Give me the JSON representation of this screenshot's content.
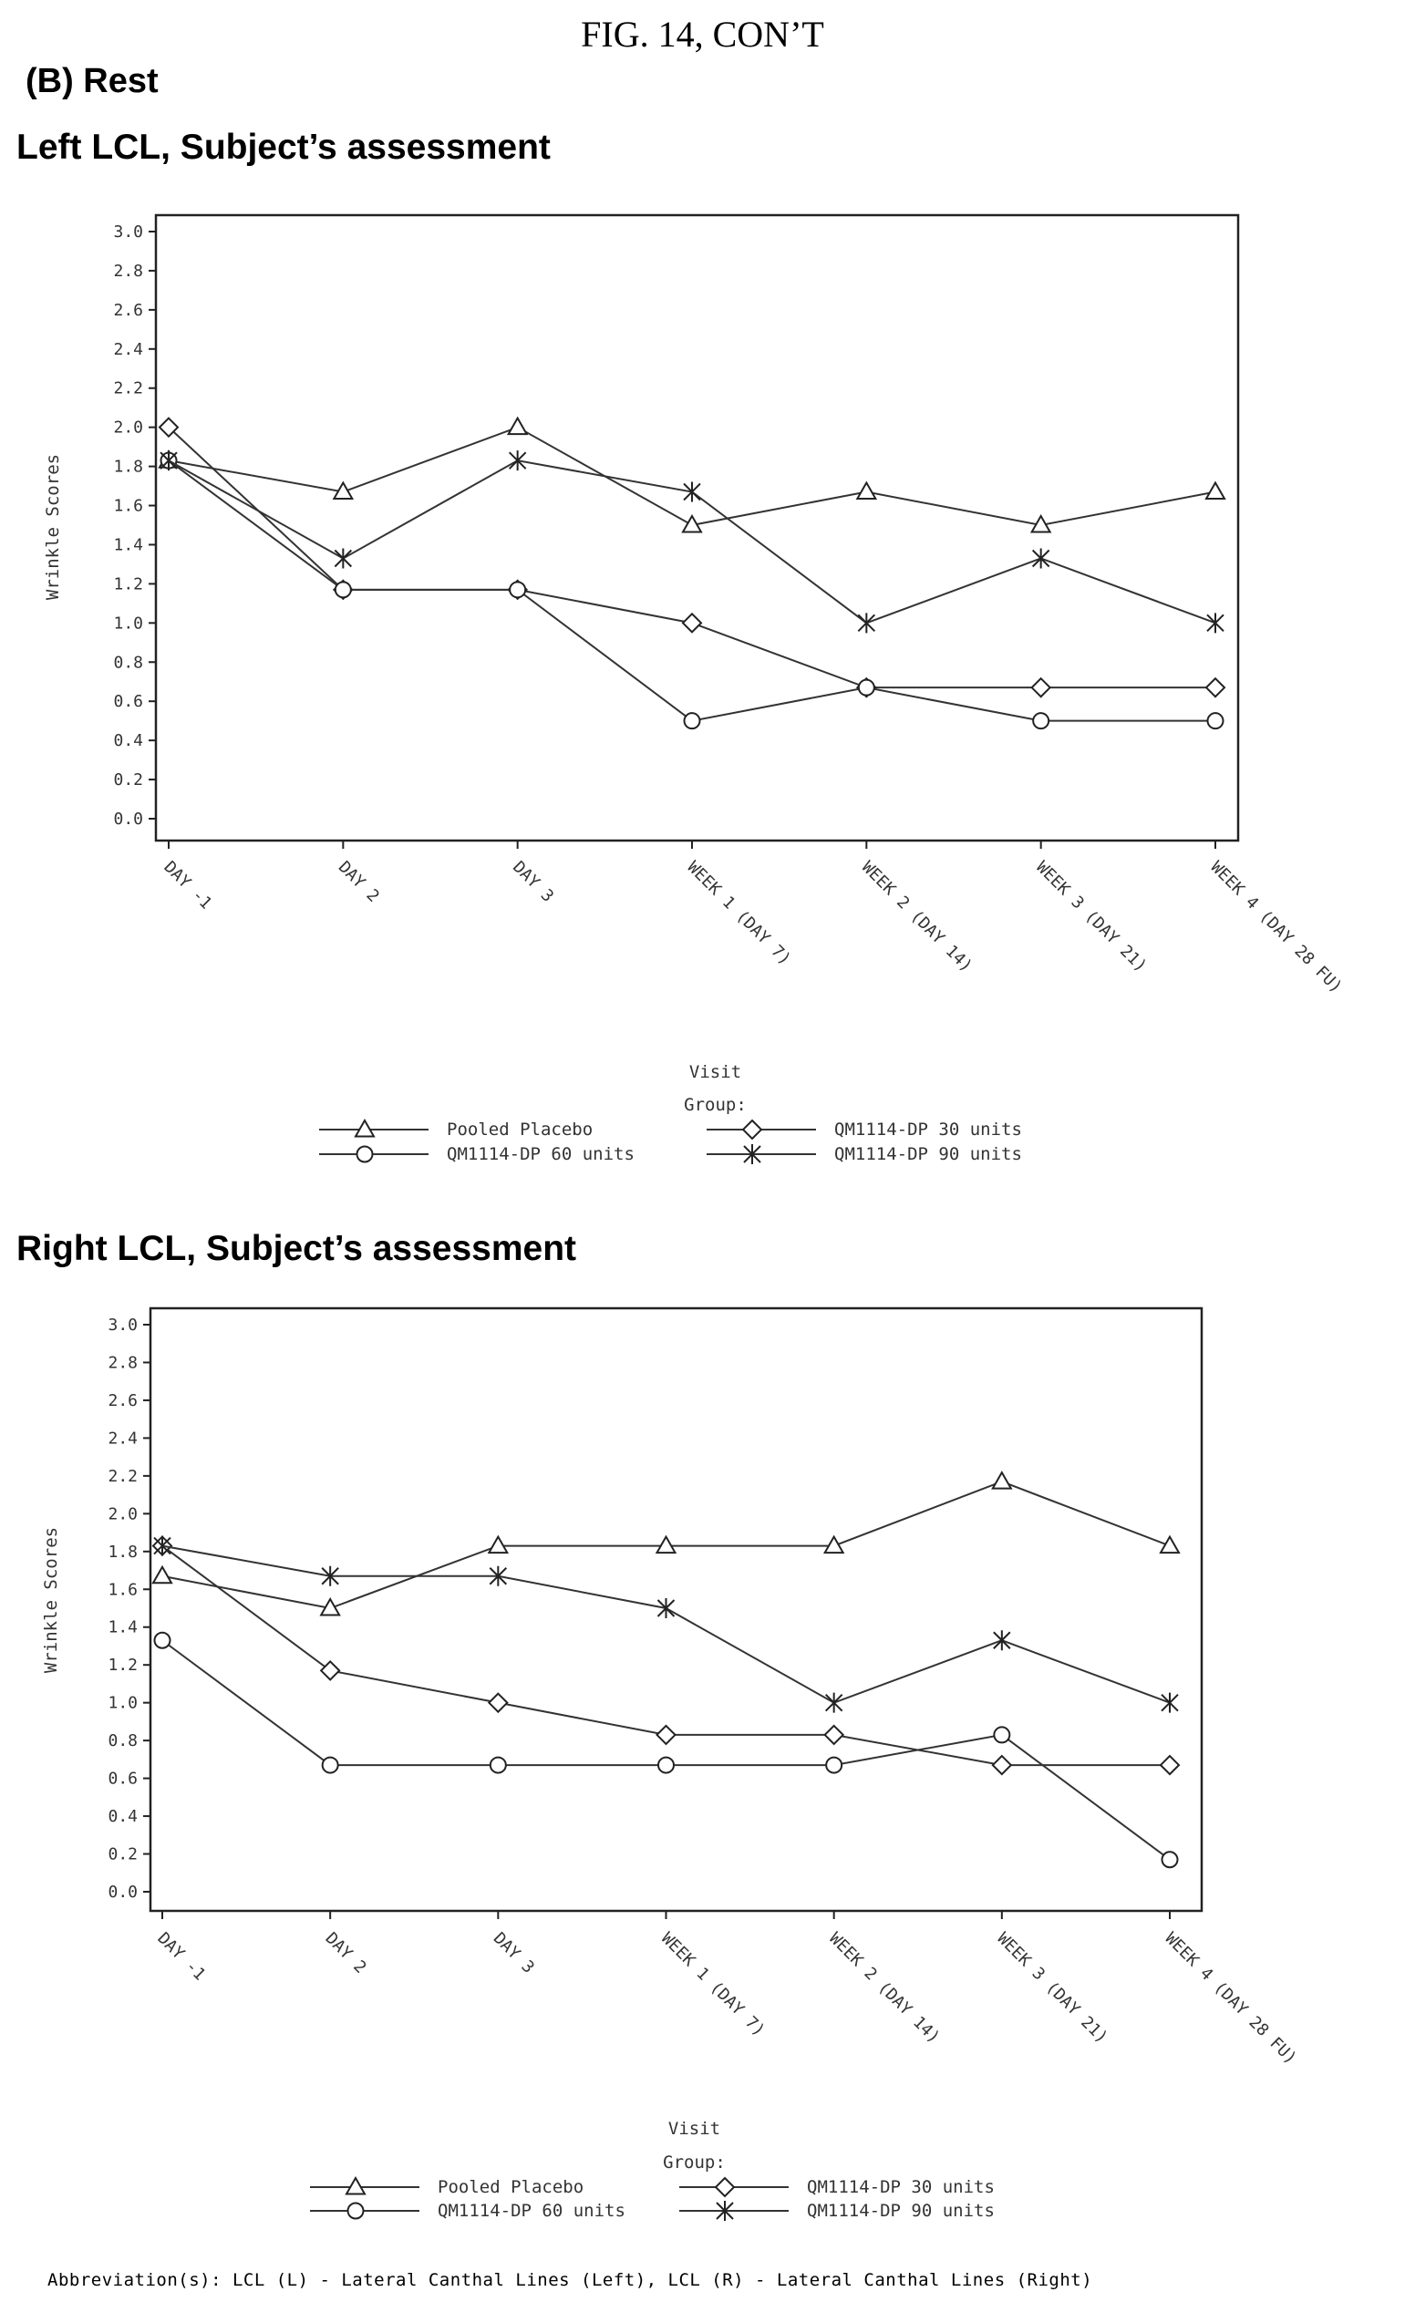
{
  "figure": {
    "title": "FIG. 14, CON’T",
    "section": "(B) Rest",
    "abbreviations": "Abbreviation(s): LCL (L) - Lateral Canthal Lines (Left), LCL (R) - Lateral Canthal Lines (Right)"
  },
  "chart_data": [
    {
      "type": "line",
      "title": "Left LCL, Subject’s assessment",
      "xlabel": "Visit",
      "ylabel": "Wrinkle Scores",
      "ylim": [
        0,
        3
      ],
      "yticks": [
        "0.0",
        "0.2",
        "0.4",
        "0.6",
        "0.8",
        "1.0",
        "1.2",
        "1.4",
        "1.6",
        "1.8",
        "2.0",
        "2.2",
        "2.4",
        "2.6",
        "2.8",
        "3.0"
      ],
      "categories": [
        "DAY -1",
        "DAY 2",
        "DAY 3",
        "WEEK 1 (DAY 7)",
        "WEEK 2 (DAY 14)",
        "WEEK 3 (DAY 21)",
        "WEEK 4 (DAY 28 FU)"
      ],
      "legend_title": "Group:",
      "legend_position": "bottom",
      "series": [
        {
          "name": "Pooled Placebo",
          "marker": "triangle",
          "values": [
            1.83,
            1.67,
            2.0,
            1.5,
            1.67,
            1.5,
            1.67
          ]
        },
        {
          "name": "QM1114-DP 30 units",
          "marker": "diamond",
          "values": [
            2.0,
            1.17,
            1.17,
            1.0,
            0.67,
            0.67,
            0.67
          ]
        },
        {
          "name": "QM1114-DP 60 units",
          "marker": "circle",
          "values": [
            1.83,
            1.17,
            1.17,
            0.5,
            0.67,
            0.5,
            0.5
          ]
        },
        {
          "name": "QM1114-DP 90 units",
          "marker": "star",
          "values": [
            1.83,
            1.33,
            1.83,
            1.67,
            1.0,
            1.33,
            1.0
          ]
        }
      ]
    },
    {
      "type": "line",
      "title": "Right LCL, Subject’s assessment",
      "xlabel": "Visit",
      "ylabel": "Wrinkle Scores",
      "ylim": [
        0,
        3
      ],
      "yticks": [
        "0.0",
        "0.2",
        "0.4",
        "0.6",
        "0.8",
        "1.0",
        "1.2",
        "1.4",
        "1.6",
        "1.8",
        "2.0",
        "2.2",
        "2.4",
        "2.6",
        "2.8",
        "3.0"
      ],
      "categories": [
        "DAY -1",
        "DAY 2",
        "DAY 3",
        "WEEK 1 (DAY 7)",
        "WEEK 2 (DAY 14)",
        "WEEK 3 (DAY 21)",
        "WEEK 4 (DAY 28 FU)"
      ],
      "legend_title": "Group:",
      "legend_position": "bottom",
      "series": [
        {
          "name": "Pooled Placebo",
          "marker": "triangle",
          "values": [
            1.67,
            1.5,
            1.83,
            1.83,
            1.83,
            2.17,
            1.83
          ]
        },
        {
          "name": "QM1114-DP 30 units",
          "marker": "diamond",
          "values": [
            1.83,
            1.17,
            1.0,
            0.83,
            0.83,
            0.67,
            0.67
          ]
        },
        {
          "name": "QM1114-DP 60 units",
          "marker": "circle",
          "values": [
            1.33,
            0.67,
            0.67,
            0.67,
            0.67,
            0.83,
            0.17
          ]
        },
        {
          "name": "QM1114-DP 90 units",
          "marker": "star",
          "values": [
            1.83,
            1.67,
            1.67,
            1.5,
            1.0,
            1.33,
            1.0
          ]
        }
      ]
    }
  ]
}
